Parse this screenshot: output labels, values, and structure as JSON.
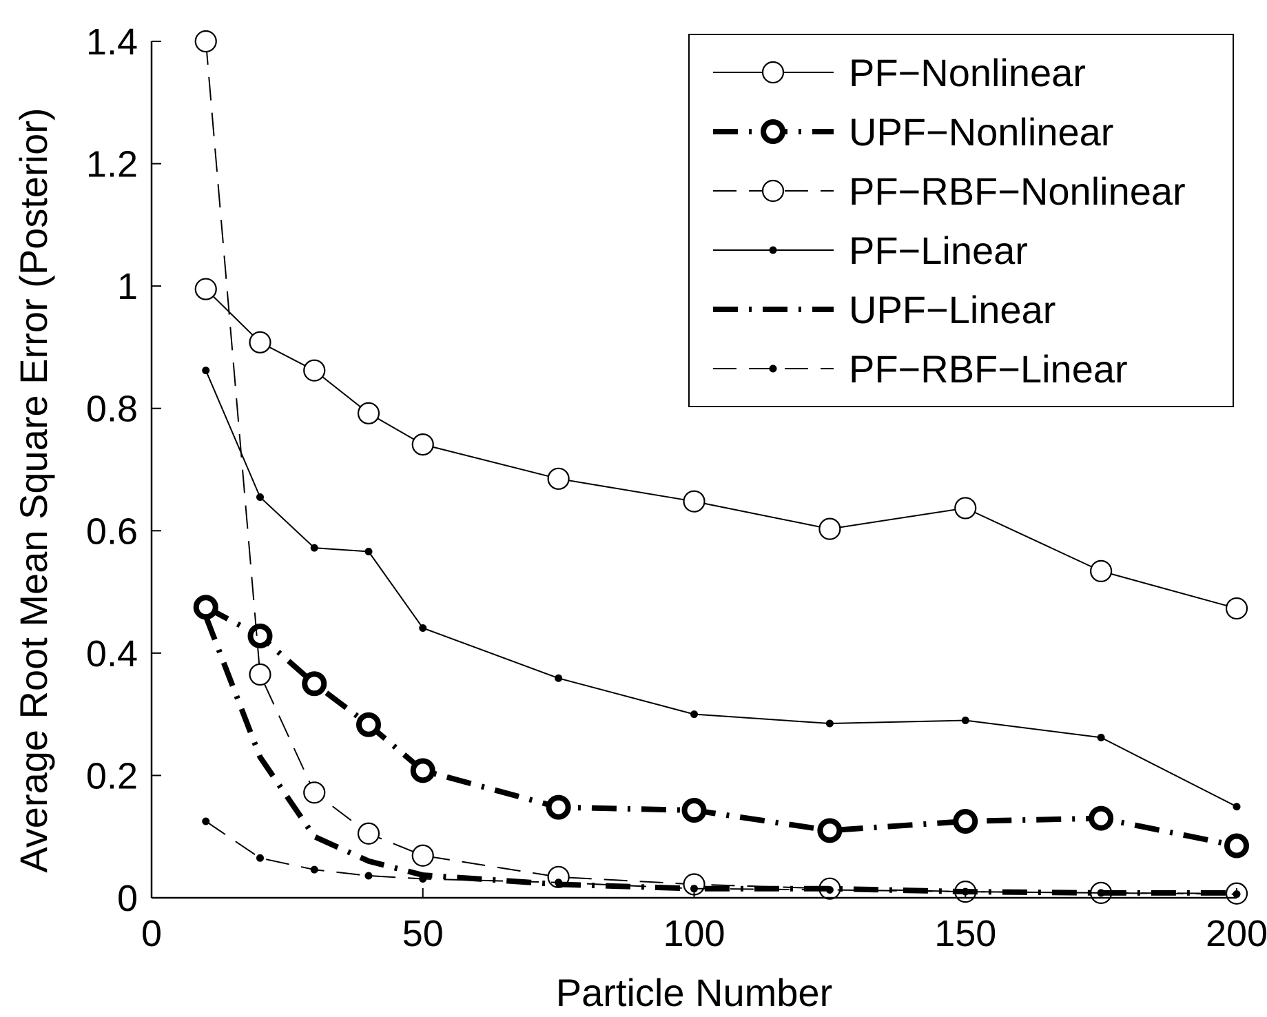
{
  "chart_data": {
    "type": "line",
    "title": "",
    "xlabel": "Particle Number",
    "ylabel": "Average Root Mean Square Error (Posterior)",
    "xlim": [
      0,
      200
    ],
    "ylim": [
      0,
      1.4
    ],
    "xticks": [
      0,
      50,
      100,
      150,
      200
    ],
    "xtick_labels": [
      "0",
      "50",
      "100",
      "150",
      "200"
    ],
    "yticks": [
      0,
      0.2,
      0.4,
      0.6,
      0.8,
      1,
      1.2,
      1.4
    ],
    "ytick_labels": [
      "0",
      "0.2",
      "0.4",
      "0.6",
      "0.8",
      "1",
      "1.2",
      "1.4"
    ],
    "grid": false,
    "legend_position": "top-right",
    "x": [
      10,
      20,
      30,
      40,
      50,
      75,
      100,
      125,
      150,
      175,
      200
    ],
    "series": [
      {
        "name": "PF−Nonlinear",
        "line_style": "solid",
        "line_weight": "thin",
        "marker": "open-circle",
        "values": [
          0.995,
          0.908,
          0.862,
          0.792,
          0.741,
          0.685,
          0.648,
          0.603,
          0.637,
          0.534,
          0.473
        ]
      },
      {
        "name": "UPF−Nonlinear",
        "line_style": "dash-dot",
        "line_weight": "thick",
        "marker": "thick-open-circle",
        "values": [
          0.475,
          0.428,
          0.35,
          0.283,
          0.208,
          0.148,
          0.143,
          0.11,
          0.125,
          0.13,
          0.085
        ]
      },
      {
        "name": "PF−RBF−Nonlinear",
        "line_style": "dashed",
        "line_weight": "thin",
        "marker": "open-circle",
        "values": [
          1.4,
          0.365,
          0.172,
          0.105,
          0.069,
          0.034,
          0.022,
          0.015,
          0.01,
          0.008,
          0.007
        ]
      },
      {
        "name": "PF−Linear",
        "line_style": "solid",
        "line_weight": "thin",
        "marker": "dot",
        "values": [
          0.862,
          0.655,
          0.572,
          0.566,
          0.441,
          0.359,
          0.3,
          0.285,
          0.29,
          0.262,
          0.149
        ]
      },
      {
        "name": "UPF−Linear",
        "line_style": "dash-dot",
        "line_weight": "thick",
        "marker": "none",
        "values": [
          0.46,
          0.23,
          0.1,
          0.06,
          0.037,
          0.022,
          0.015,
          0.015,
          0.01,
          0.008,
          0.008
        ]
      },
      {
        "name": "PF−RBF−Linear",
        "line_style": "dashed",
        "line_weight": "thin",
        "marker": "dot",
        "values": [
          0.125,
          0.065,
          0.046,
          0.036,
          0.031,
          0.025,
          0.015,
          0.013,
          0.01,
          0.008,
          0.006
        ]
      }
    ],
    "colors": {
      "line": "#000000",
      "background": "#ffffff"
    }
  }
}
